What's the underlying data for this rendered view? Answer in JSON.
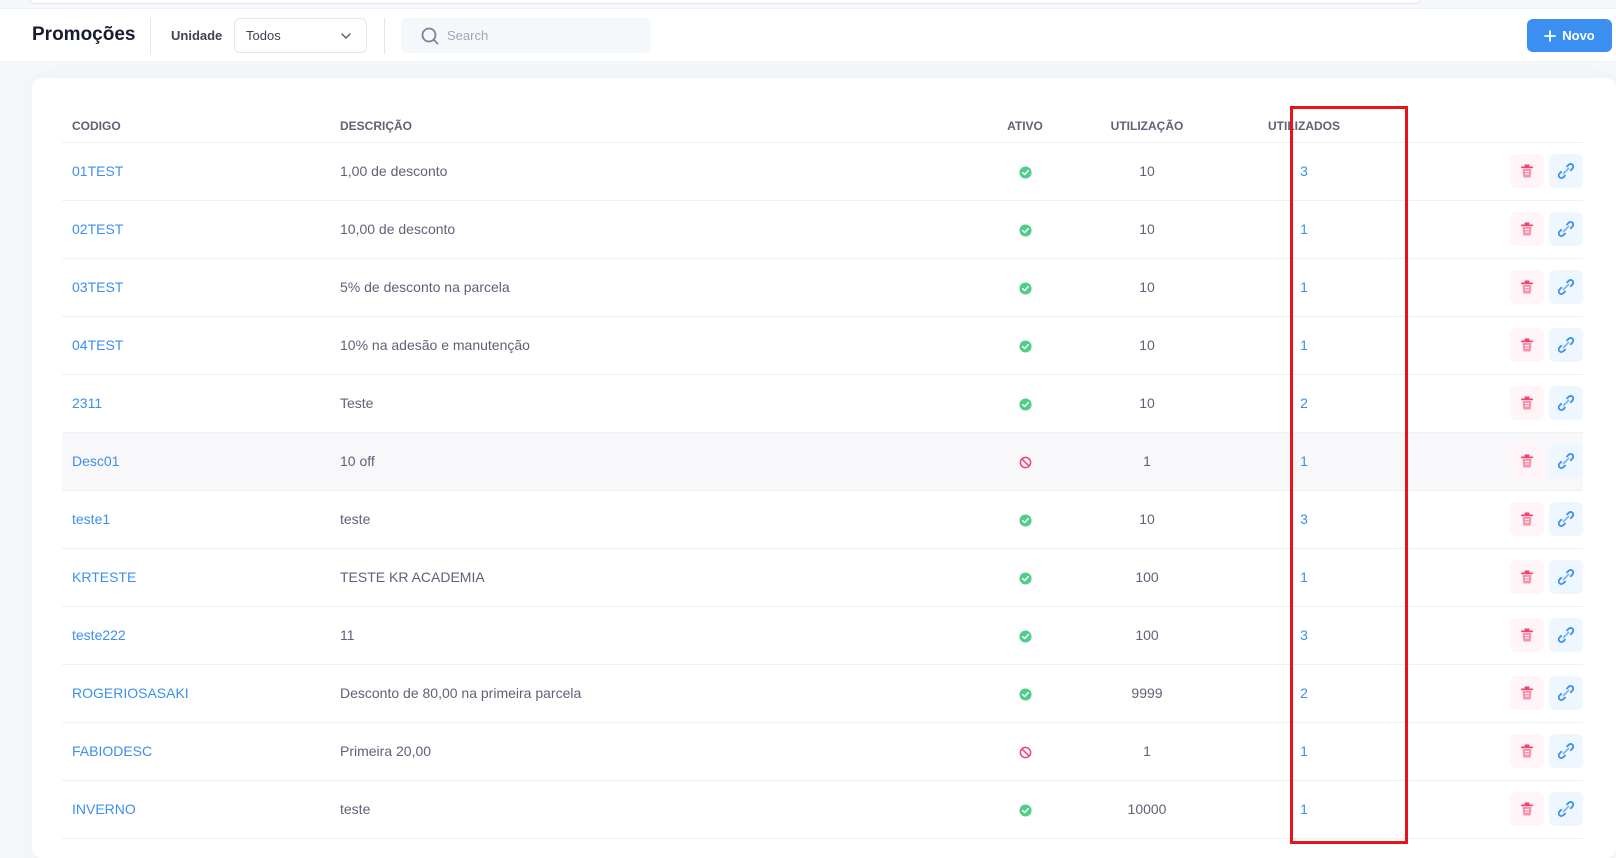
{
  "header": {
    "title": "Promoções",
    "unit_label": "Unidade",
    "unit_value": "Todos",
    "search_placeholder": "Search",
    "new_button": "Novo"
  },
  "table": {
    "columns": [
      "CODIGO",
      "DESCRIÇÃO",
      "ATIVO",
      "UTILIZAÇÃO",
      "UTILIZADOS"
    ],
    "rows": [
      {
        "code": "01TEST",
        "description": "1,00 de desconto",
        "active": true,
        "usage": "10",
        "used": "3"
      },
      {
        "code": "02TEST",
        "description": "10,00 de desconto",
        "active": true,
        "usage": "10",
        "used": "1"
      },
      {
        "code": "03TEST",
        "description": "5% de desconto na parcela",
        "active": true,
        "usage": "10",
        "used": "1"
      },
      {
        "code": "04TEST",
        "description": "10% na adesão e manutenção",
        "active": true,
        "usage": "10",
        "used": "1"
      },
      {
        "code": "2311",
        "description": "Teste",
        "active": true,
        "usage": "10",
        "used": "2"
      },
      {
        "code": "Desc01",
        "description": "10 off",
        "active": false,
        "usage": "1",
        "used": "1"
      },
      {
        "code": "teste1",
        "description": "teste",
        "active": true,
        "usage": "10",
        "used": "3"
      },
      {
        "code": "KRTESTE",
        "description": "TESTE KR ACADEMIA",
        "active": true,
        "usage": "100",
        "used": "1"
      },
      {
        "code": "teste222",
        "description": "11",
        "active": true,
        "usage": "100",
        "used": "3"
      },
      {
        "code": "ROGERIOSASAKI",
        "description": "Desconto de 80,00 na primeira parcela",
        "active": true,
        "usage": "9999",
        "used": "2"
      },
      {
        "code": "FABIODESC",
        "description": "Primeira 20,00",
        "active": false,
        "usage": "1",
        "used": "1"
      },
      {
        "code": "INVERNO",
        "description": "teste",
        "active": true,
        "usage": "10000",
        "used": "1"
      }
    ]
  },
  "icons": {
    "active": "check-circle-icon",
    "inactive": "ban-icon",
    "delete": "trash-icon",
    "link": "link-icon",
    "search": "search-icon",
    "dropdown": "chevron-down-icon",
    "new": "plus-icon"
  },
  "colors": {
    "primary": "#3b8ff0",
    "success": "#50cd89",
    "danger": "#f1416c",
    "highlight_box": "#e8141c"
  }
}
